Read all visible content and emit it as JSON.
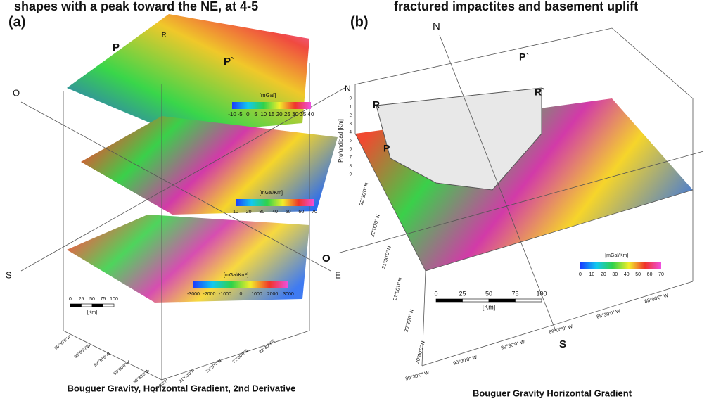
{
  "header": {
    "text_left": "shapes with a peak toward the NE, at 4-5",
    "text_right": "fractured impactites and basement uplift"
  },
  "panel_a": {
    "label": "(a)",
    "profile_labels": [
      "P",
      "P`",
      "R"
    ],
    "directions": [
      "O",
      "S",
      "E"
    ],
    "colorbars": [
      {
        "unit": "[mGal]",
        "ticks": [
          -10,
          -5,
          0,
          5,
          10,
          15,
          20,
          25,
          30,
          35,
          40
        ]
      },
      {
        "unit": "[mGal/Km]",
        "ticks": [
          10,
          20,
          30,
          40,
          50,
          60,
          70
        ]
      },
      {
        "unit": "[mGal/Km²]",
        "ticks": [
          -3000,
          -2000,
          -1000,
          0,
          1000,
          2000,
          3000
        ]
      }
    ],
    "scale": {
      "ticks": [
        0,
        25,
        50,
        75,
        100
      ],
      "unit": "[Km]"
    },
    "lon_labels": [
      "90°30'0\"W",
      "90°00'0\"W",
      "89°30'0\"W",
      "89°00'0\"W",
      "88°30'0\"W"
    ],
    "lat_labels": [
      "20°30'0\"N",
      "21°00'0\"N",
      "21°30'0\"N",
      "22°00'0\"N",
      "22°30'0\"N"
    ],
    "caption": "Bouguer Gravity, Horizontal Gradient, 2nd Derivative"
  },
  "panel_b": {
    "label": "(b)",
    "north": "N",
    "south": "S",
    "west": "O",
    "axis_north": "N",
    "profile_labels": [
      "P",
      "P`",
      "R",
      "R`"
    ],
    "depth_axis": {
      "title": "Profundidad [Km]",
      "ticks": [
        0,
        1,
        2,
        3,
        4,
        5,
        6,
        7,
        8,
        9
      ]
    },
    "colorbar": {
      "unit": "[mGal/Km]",
      "ticks": [
        0,
        10,
        20,
        30,
        40,
        50,
        60,
        70
      ]
    },
    "scale": {
      "ticks": [
        0,
        25,
        50,
        75,
        100
      ],
      "unit": "[Km]"
    },
    "lon_labels": [
      "90°30'0\" W",
      "90°00'0\" W",
      "89°30'0\" W",
      "89°00'0\" W",
      "88°30'0\" W",
      "88°00'0\" W"
    ],
    "lat_labels": [
      "22°30'0\" N",
      "22°00'0\" N",
      "21°30'0\" N",
      "21°00'0\" N",
      "20°30'0\" N",
      "20°00'0\" N"
    ],
    "caption": "Bouguer Gravity Horizontal Gradient"
  }
}
